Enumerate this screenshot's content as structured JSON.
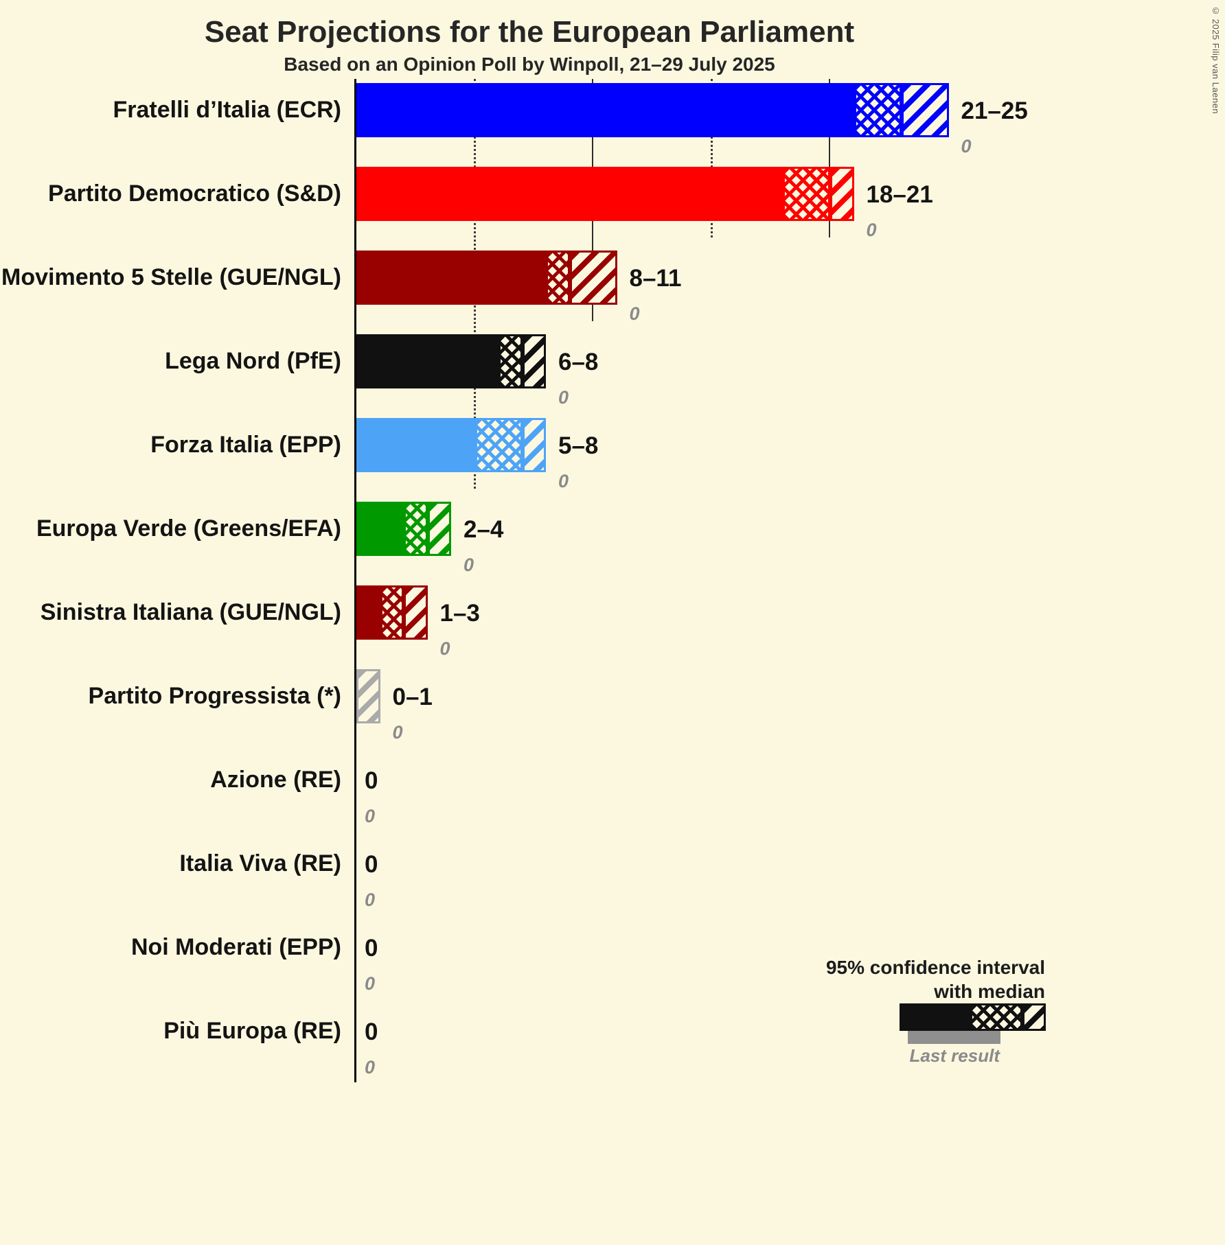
{
  "title": "Seat Projections for the European Parliament",
  "subtitle": "Based on an Opinion Poll by Winpoll, 21–29 July 2025",
  "copyright": "© 2025 Filip van Laenen",
  "legend": {
    "caption_line1": "95% confidence interval",
    "caption_line2": "with median",
    "last_result_label": "Last result"
  },
  "chart_data": {
    "type": "bar",
    "orientation": "horizontal",
    "title": "Seat Projections for the European Parliament",
    "subtitle": "Based on an Opinion Poll by Winpoll, 21–29 July 2025",
    "x_axis": {
      "min": 0,
      "max": 25
    },
    "gridlines": [
      {
        "seats": 5,
        "style": "dotted"
      },
      {
        "seats": 10,
        "style": "solid"
      },
      {
        "seats": 15,
        "style": "dotted"
      },
      {
        "seats": 20,
        "style": "solid"
      }
    ],
    "parties": [
      {
        "name": "Fratelli d’Italia (ECR)",
        "ci_low": 21,
        "median": 23,
        "ci_high": 25,
        "range_label": "21–25",
        "last_result": 0,
        "last_result_label": "0",
        "color": "#0000FF"
      },
      {
        "name": "Partito Democratico (S&D)",
        "ci_low": 18,
        "median": 20,
        "ci_high": 21,
        "range_label": "18–21",
        "last_result": 0,
        "last_result_label": "0",
        "color": "#FF0000"
      },
      {
        "name": "Movimento 5 Stelle (GUE/NGL)",
        "ci_low": 8,
        "median": 9,
        "ci_high": 11,
        "range_label": "8–11",
        "last_result": 0,
        "last_result_label": "0",
        "color": "#990000"
      },
      {
        "name": "Lega Nord (PfE)",
        "ci_low": 6,
        "median": 7,
        "ci_high": 8,
        "range_label": "6–8",
        "last_result": 0,
        "last_result_label": "0",
        "color": "#111111"
      },
      {
        "name": "Forza Italia (EPP)",
        "ci_low": 5,
        "median": 7,
        "ci_high": 8,
        "range_label": "5–8",
        "last_result": 0,
        "last_result_label": "0",
        "color": "#4DA4F7"
      },
      {
        "name": "Europa Verde (Greens/EFA)",
        "ci_low": 2,
        "median": 3,
        "ci_high": 4,
        "range_label": "2–4",
        "last_result": 0,
        "last_result_label": "0",
        "color": "#009900"
      },
      {
        "name": "Sinistra Italiana (GUE/NGL)",
        "ci_low": 1,
        "median": 2,
        "ci_high": 3,
        "range_label": "1–3",
        "last_result": 0,
        "last_result_label": "0",
        "color": "#990000"
      },
      {
        "name": "Partito Progressista (*)",
        "ci_low": 0,
        "median": 0,
        "ci_high": 1,
        "range_label": "0–1",
        "last_result": 0,
        "last_result_label": "0",
        "color": "#AAAAAA"
      },
      {
        "name": "Azione (RE)",
        "ci_low": 0,
        "median": 0,
        "ci_high": 0,
        "range_label": "0",
        "last_result": 0,
        "last_result_label": "0"
      },
      {
        "name": "Italia Viva (RE)",
        "ci_low": 0,
        "median": 0,
        "ci_high": 0,
        "range_label": "0",
        "last_result": 0,
        "last_result_label": "0"
      },
      {
        "name": "Noi Moderati (EPP)",
        "ci_low": 0,
        "median": 0,
        "ci_high": 0,
        "range_label": "0",
        "last_result": 0,
        "last_result_label": "0"
      },
      {
        "name": "Più Europa (RE)",
        "ci_low": 0,
        "median": 0,
        "ci_high": 0,
        "range_label": "0",
        "last_result": 0,
        "last_result_label": "0"
      }
    ]
  }
}
